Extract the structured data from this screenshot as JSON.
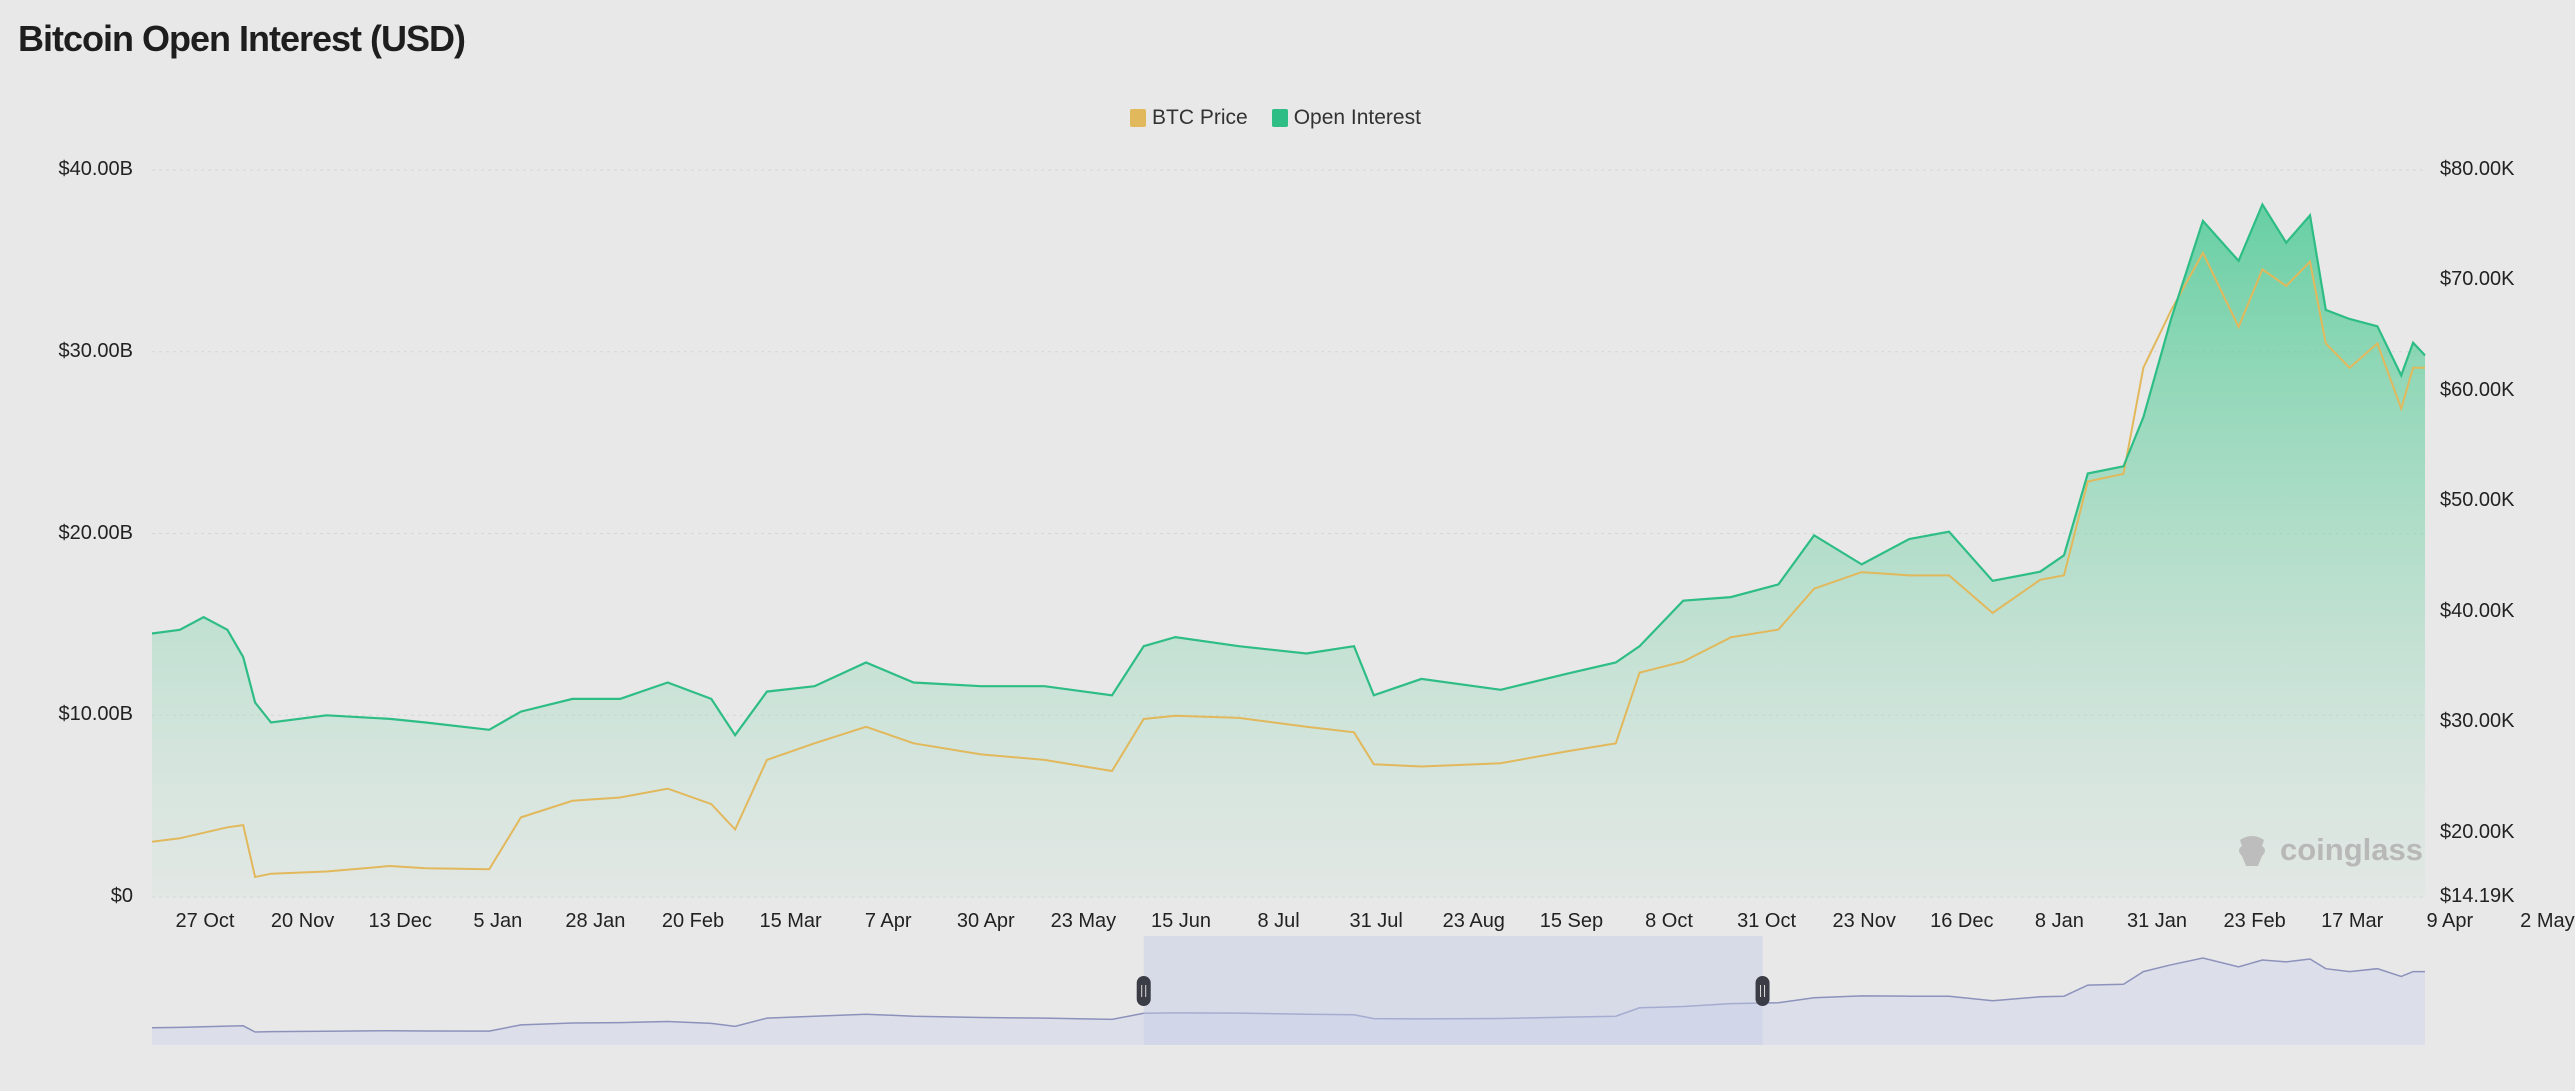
{
  "chart_data": {
    "type": "area",
    "title": "Bitcoin Open Interest (USD)",
    "legend": {
      "placement": "top-center",
      "entries": [
        "BTC Price",
        "Open Interest"
      ]
    },
    "colors": {
      "btc_price": "#e2b85c",
      "open_interest": "#2dbd85",
      "navigator_line": "#8c92bb",
      "navigator_fill": "#dcdfe9",
      "navigator_selection": "#c8cfe8"
    },
    "grid": true,
    "y_left": {
      "ticks": [
        "$0",
        "$10.00B",
        "$20.00B",
        "$30.00B",
        "$40.00B"
      ],
      "range": [
        0,
        40
      ],
      "unit": "USD billions"
    },
    "y_right": {
      "ticks": [
        "$14.19K",
        "$20.00K",
        "$30.00K",
        "$40.00K",
        "$50.00K",
        "$60.00K",
        "$70.00K",
        "$80.00K"
      ],
      "range": [
        14.19,
        80
      ],
      "unit": "USD thousands"
    },
    "x_ticks": [
      "27 Oct",
      "20 Nov",
      "13 Dec",
      "5 Jan",
      "28 Jan",
      "20 Feb",
      "15 Mar",
      "7 Apr",
      "30 Apr",
      "23 May",
      "15 Jun",
      "8 Jul",
      "31 Jul",
      "23 Aug",
      "15 Sep",
      "8 Oct",
      "31 Oct",
      "23 Nov",
      "16 Dec",
      "8 Jan",
      "31 Jan",
      "23 Feb",
      "17 Mar",
      "9 Apr",
      "2 May"
    ],
    "x_range": [
      "2022-10-13",
      "2024-05-08"
    ],
    "dates": [
      "2022-10-13",
      "2022-10-20",
      "2022-10-26",
      "2022-11-01",
      "2022-11-05",
      "2022-11-08",
      "2022-11-12",
      "2022-11-26",
      "2022-12-12",
      "2022-12-21",
      "2023-01-06",
      "2023-01-14",
      "2023-01-27",
      "2023-02-08",
      "2023-02-20",
      "2023-03-03",
      "2023-03-09",
      "2023-03-17",
      "2023-03-29",
      "2023-04-11",
      "2023-04-23",
      "2023-05-10",
      "2023-05-26",
      "2023-06-12",
      "2023-06-20",
      "2023-06-28",
      "2023-07-14",
      "2023-07-31",
      "2023-08-12",
      "2023-08-17",
      "2023-08-29",
      "2023-09-18",
      "2023-10-05",
      "2023-10-17",
      "2023-10-23",
      "2023-11-03",
      "2023-11-15",
      "2023-11-27",
      "2023-12-06",
      "2023-12-18",
      "2023-12-30",
      "2024-01-09",
      "2024-01-20",
      "2024-02-01",
      "2024-02-07",
      "2024-02-13",
      "2024-02-22",
      "2024-02-27",
      "2024-03-05",
      "2024-03-13",
      "2024-03-22",
      "2024-03-28",
      "2024-04-03",
      "2024-04-09",
      "2024-04-13",
      "2024-04-19",
      "2024-04-26",
      "2024-05-02",
      "2024-05-05",
      "2024-05-08"
    ],
    "series": [
      {
        "name": "Open Interest",
        "axis": "left",
        "unit": "USD billions",
        "values": [
          14.5,
          14.7,
          15.4,
          14.7,
          13.2,
          10.7,
          9.6,
          10.0,
          9.8,
          9.6,
          9.2,
          10.2,
          10.9,
          10.9,
          11.8,
          10.9,
          8.9,
          11.3,
          11.6,
          12.9,
          11.8,
          11.6,
          11.6,
          11.1,
          13.8,
          14.3,
          13.8,
          13.4,
          13.8,
          11.1,
          12.0,
          11.4,
          12.3,
          12.9,
          13.8,
          16.3,
          16.5,
          17.2,
          19.9,
          18.3,
          19.7,
          20.1,
          17.4,
          17.9,
          18.8,
          23.3,
          23.7,
          26.4,
          31.8,
          37.2,
          35.0,
          38.1,
          36.0,
          37.5,
          32.3,
          31.8,
          31.4,
          28.7,
          30.5,
          29.8
        ]
      },
      {
        "name": "BTC Price",
        "axis": "right",
        "unit": "USD thousands",
        "values": [
          19.2,
          19.5,
          20.0,
          20.5,
          20.7,
          16.0,
          16.3,
          16.5,
          17.0,
          16.8,
          16.7,
          21.4,
          22.9,
          23.2,
          24.0,
          22.6,
          20.3,
          26.6,
          28.1,
          29.6,
          28.1,
          27.1,
          26.6,
          25.6,
          30.3,
          30.6,
          30.4,
          29.6,
          29.1,
          26.2,
          26.0,
          26.3,
          27.4,
          28.1,
          34.5,
          35.5,
          37.7,
          38.4,
          42.1,
          43.6,
          43.3,
          43.3,
          39.9,
          42.9,
          43.3,
          51.8,
          52.5,
          62.1,
          67.3,
          72.5,
          65.8,
          71.0,
          69.5,
          71.7,
          64.3,
          62.1,
          64.3,
          58.4,
          62.1,
          62.1
        ]
      }
    ],
    "navigator": {
      "selection": [
        "2023-06-20",
        "2023-11-23"
      ]
    }
  },
  "watermark": "coinglass"
}
